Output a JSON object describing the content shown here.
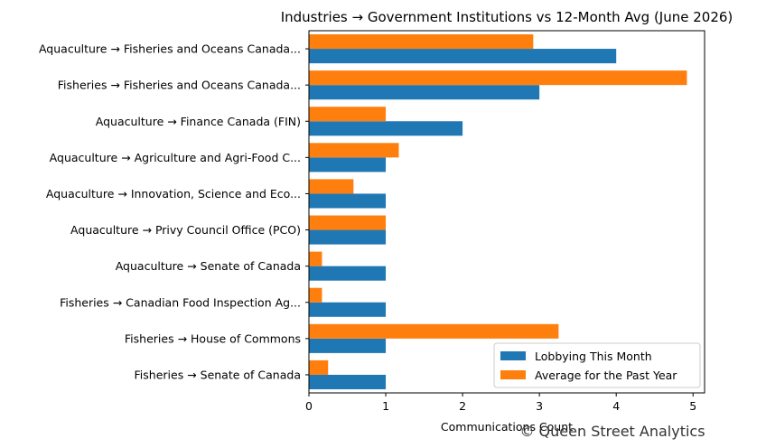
{
  "chart_data": {
    "type": "bar",
    "orientation": "horizontal",
    "title": "Industries → Government Institutions vs 12-Month Avg (June 2026)",
    "xlabel": "Communications Count",
    "ylabel": "",
    "xlim": [
      0,
      5.15
    ],
    "xticks": [
      "0",
      "1",
      "2",
      "3",
      "4",
      "5"
    ],
    "grid": false,
    "legend_position": "lower right",
    "categories": [
      "Aquaculture → Fisheries and Oceans Canada...",
      "Fisheries → Fisheries and Oceans Canada...",
      "Aquaculture → Finance Canada (FIN)",
      "Aquaculture → Agriculture and Agri-Food C...",
      "Aquaculture → Innovation, Science and Eco...",
      "Aquaculture → Privy Council Office (PCO)",
      "Aquaculture → Senate of Canada",
      "Fisheries → Canadian Food Inspection Ag...",
      "Fisheries → House of Commons",
      "Fisheries → Senate of Canada"
    ],
    "series": [
      {
        "name": "Lobbying This Month",
        "color": "#1f77b4",
        "values": [
          4,
          3,
          2,
          1,
          1,
          1,
          1,
          1,
          1,
          1
        ]
      },
      {
        "name": "Average for the Past Year",
        "color": "#ff7f0e",
        "values": [
          2.92,
          4.92,
          1.0,
          1.17,
          0.58,
          1.0,
          0.17,
          0.17,
          3.25,
          0.25
        ]
      }
    ]
  },
  "watermark": "© Queen Street Analytics"
}
